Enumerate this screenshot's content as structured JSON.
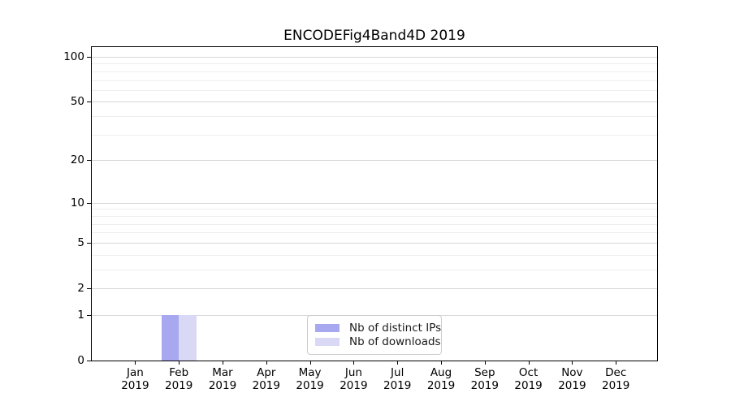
{
  "chart_data": {
    "type": "bar",
    "title": "ENCODEFig4Band4D 2019",
    "year": "2019",
    "months": [
      "Jan",
      "Feb",
      "Mar",
      "Apr",
      "May",
      "Jun",
      "Jul",
      "Aug",
      "Sep",
      "Oct",
      "Nov",
      "Dec"
    ],
    "categories": [
      "Jan 2019",
      "Feb 2019",
      "Mar 2019",
      "Apr 2019",
      "May 2019",
      "Jun 2019",
      "Jul 2019",
      "Aug 2019",
      "Sep 2019",
      "Oct 2019",
      "Nov 2019",
      "Dec 2019"
    ],
    "series": [
      {
        "name": "Nb of distinct IPs",
        "color": "#a8a8f0",
        "values": [
          0,
          1,
          0,
          0,
          0,
          0,
          0,
          0,
          0,
          0,
          0,
          0
        ]
      },
      {
        "name": "Nb of downloads",
        "color": "#d9d9f6",
        "values": [
          0,
          1,
          0,
          0,
          0,
          0,
          0,
          0,
          0,
          0,
          0,
          0
        ]
      }
    ],
    "y_axis": {
      "scale": "log1p",
      "tick_values": [
        0,
        1,
        2,
        5,
        10,
        20,
        50,
        100
      ],
      "minor_gridline_values": [
        3,
        4,
        6,
        7,
        8,
        9,
        30,
        40,
        60,
        70,
        80,
        90
      ],
      "ylim": [
        0,
        115
      ],
      "grid": true
    },
    "legend": {
      "position": "bottom-center"
    },
    "colors": {
      "axis": "#000000",
      "text": "#000000",
      "grid_major": "#d7d7d7",
      "grid_minor": "#eeeeee",
      "figure_background": "#ffffff"
    }
  }
}
